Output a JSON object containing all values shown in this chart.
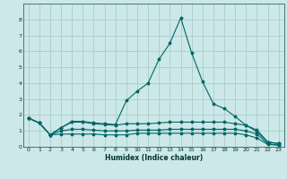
{
  "title": "",
  "xlabel": "Humidex (Indice chaleur)",
  "ylabel": "",
  "background_color": "#cce8e8",
  "grid_color": "#aacccc",
  "line_color": "#006666",
  "x_values": [
    0,
    1,
    2,
    3,
    4,
    5,
    6,
    7,
    8,
    9,
    10,
    11,
    12,
    13,
    14,
    15,
    16,
    17,
    18,
    19,
    20,
    21,
    22,
    23
  ],
  "lines": [
    [
      1.8,
      1.5,
      0.75,
      1.2,
      1.6,
      1.6,
      1.5,
      1.45,
      1.4,
      2.9,
      3.5,
      4.0,
      5.5,
      6.5,
      8.1,
      5.9,
      4.1,
      2.7,
      2.4,
      1.9,
      1.35,
      1.05,
      0.3,
      0.2
    ],
    [
      1.8,
      1.5,
      0.75,
      1.2,
      1.55,
      1.55,
      1.45,
      1.4,
      1.35,
      1.45,
      1.45,
      1.45,
      1.5,
      1.55,
      1.55,
      1.55,
      1.55,
      1.55,
      1.55,
      1.45,
      1.35,
      0.95,
      0.3,
      0.2
    ],
    [
      1.8,
      1.5,
      0.75,
      1.0,
      1.1,
      1.1,
      1.05,
      1.0,
      1.0,
      1.0,
      1.05,
      1.05,
      1.05,
      1.1,
      1.1,
      1.1,
      1.1,
      1.1,
      1.1,
      1.1,
      1.0,
      0.8,
      0.2,
      0.1
    ],
    [
      1.8,
      1.5,
      0.75,
      0.8,
      0.8,
      0.8,
      0.8,
      0.75,
      0.75,
      0.75,
      0.85,
      0.85,
      0.85,
      0.85,
      0.85,
      0.85,
      0.85,
      0.85,
      0.85,
      0.85,
      0.75,
      0.55,
      0.15,
      0.1
    ]
  ],
  "ylim": [
    0,
    9
  ],
  "xlim": [
    -0.5,
    23.5
  ],
  "yticks": [
    0,
    1,
    2,
    3,
    4,
    5,
    6,
    7,
    8
  ],
  "xticks": [
    0,
    1,
    2,
    3,
    4,
    5,
    6,
    7,
    8,
    9,
    10,
    11,
    12,
    13,
    14,
    15,
    16,
    17,
    18,
    19,
    20,
    21,
    22,
    23
  ]
}
